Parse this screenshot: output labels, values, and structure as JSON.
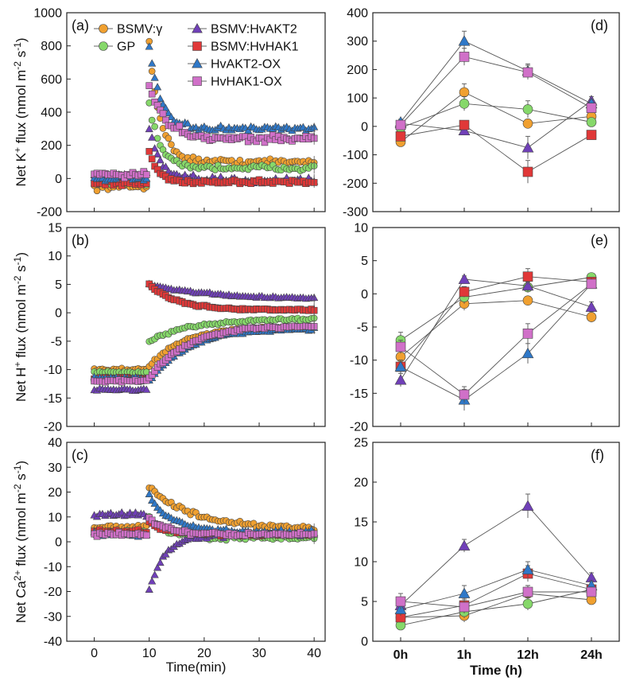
{
  "colors": {
    "BSMV:γ": "#f0a030",
    "GP": "#86d86a",
    "BSMV:HvAKT2": "#7040b8",
    "BSMV:HvHAK1": "#e03838",
    "HvAKT2-OX": "#2f78c8",
    "HvHAK1-OX": "#d070c8"
  },
  "markers": {
    "BSMV:γ": "circle",
    "GP": "circle",
    "BSMV:HvAKT2": "triangle",
    "BSMV:HvHAK1": "square",
    "HvAKT2-OX": "triangle",
    "HvHAK1-OX": "square"
  },
  "legend": {
    "placement": "top, inside panel (a)",
    "entries": [
      "BSMV:γ",
      "GP",
      "BSMV:HvAKT2",
      "BSMV:HvHAK1",
      "HvAKT2-OX",
      "HvHAK1-OX"
    ]
  },
  "chart_data": [
    {
      "panel": "(a)",
      "type": "scatter",
      "ylabel": "Net K+ flux (nmol m-2 s-1)",
      "ylim": [
        -200,
        1000
      ],
      "yticks": [
        -200,
        0,
        200,
        400,
        600,
        800,
        1000
      ],
      "xlim": [
        -5,
        42
      ],
      "xticks": [
        0,
        10,
        20,
        30,
        40
      ],
      "treatment_time": 10,
      "series": [
        {
          "name": "BSMV:γ",
          "base": -50,
          "peak": 820,
          "plateau": 100,
          "tau": 2.0,
          "noise": 15
        },
        {
          "name": "GP",
          "base": -20,
          "peak": 440,
          "plateau": 65,
          "tau": 2.0,
          "noise": 15
        },
        {
          "name": "BSMV:HvAKT2",
          "base": 15,
          "peak": 300,
          "plateau": -10,
          "tau": 2.0,
          "noise": 18
        },
        {
          "name": "BSMV:HvHAK1",
          "base": -30,
          "peak": 170,
          "plateau": -20,
          "tau": 1.5,
          "noise": 12
        },
        {
          "name": "HvAKT2-OX",
          "base": 0,
          "peak": 800,
          "plateau": 300,
          "tau": 2.0,
          "noise": 12
        },
        {
          "name": "HvHAK1-OX",
          "base": 25,
          "peak": 560,
          "plateau": 240,
          "tau": 3.0,
          "noise": 18
        }
      ]
    },
    {
      "panel": "(b)",
      "type": "scatter",
      "ylabel": "Net H+ flux (nmol m-2 s-1)",
      "ylim": [
        -20,
        15
      ],
      "yticks": [
        -20,
        -15,
        -10,
        -5,
        0,
        5,
        10,
        15
      ],
      "xlim": [
        -5,
        42
      ],
      "xticks": [
        0,
        10,
        20,
        30,
        40
      ],
      "treatment_time": 10,
      "series": [
        {
          "name": "BSMV:γ",
          "base": -10,
          "peak": -9.5,
          "plateau": -2.5,
          "tau": 6,
          "noise": 0.2
        },
        {
          "name": "GP",
          "base": -10.5,
          "peak": -5,
          "plateau": -1,
          "tau": 8,
          "noise": 0.2
        },
        {
          "name": "BSMV:HvAKT2",
          "base": -13.5,
          "peak": 5,
          "plateau": 2.3,
          "tau": 12,
          "noise": 0.15
        },
        {
          "name": "BSMV:HvHAK1",
          "base": -11.5,
          "peak": 5,
          "plateau": 0.5,
          "tau": 5,
          "noise": 0.15
        },
        {
          "name": "HvAKT2-OX",
          "base": -11.5,
          "peak": -12,
          "plateau": -2.7,
          "tau": 7,
          "noise": 0.2
        },
        {
          "name": "HvHAK1-OX",
          "base": -12,
          "peak": -11.5,
          "plateau": -2.2,
          "tau": 7,
          "noise": 0.2
        }
      ]
    },
    {
      "panel": "(c)",
      "type": "scatter",
      "ylabel": "Net Ca2+ flux (nmol m-2 s-1)",
      "xlabel": "Time(min)",
      "ylim": [
        -40,
        40
      ],
      "yticks": [
        -40,
        -30,
        -20,
        -10,
        0,
        10,
        20,
        30,
        40
      ],
      "xlim": [
        -5,
        42
      ],
      "xticks": [
        0,
        10,
        20,
        30,
        40
      ],
      "treatment_time": 10,
      "series": [
        {
          "name": "BSMV:γ",
          "base": 6,
          "peak": 22,
          "plateau": 5,
          "tau": 8,
          "noise": 0.8
        },
        {
          "name": "GP",
          "base": 4,
          "peak": 10,
          "plateau": 1.5,
          "tau": 3,
          "noise": 0.7
        },
        {
          "name": "BSMV:HvAKT2",
          "base": 11,
          "peak": -19,
          "plateau": 3,
          "tau": 3,
          "noise": 0.8
        },
        {
          "name": "BSMV:HvHAK1",
          "base": 4,
          "peak": 8,
          "plateau": 3,
          "tau": 3,
          "noise": 0.6
        },
        {
          "name": "HvAKT2-OX",
          "base": 3,
          "peak": 19,
          "plateau": 4,
          "tau": 4,
          "noise": 0.7
        },
        {
          "name": "HvHAK1-OX",
          "base": 3,
          "peak": 10,
          "plateau": 3,
          "tau": 3,
          "noise": 0.6
        }
      ]
    },
    {
      "panel": "(d)",
      "type": "line",
      "categories": [
        "0h",
        "1h",
        "12h",
        "24h"
      ],
      "ylim": [
        -300,
        400
      ],
      "yticks": [
        -300,
        -200,
        -100,
        0,
        100,
        200,
        300,
        400
      ],
      "series": [
        {
          "name": "BSMV:γ",
          "values": [
            -55,
            120,
            10,
            35
          ],
          "errors": [
            15,
            30,
            15,
            10
          ]
        },
        {
          "name": "GP",
          "values": [
            -5,
            80,
            60,
            15
          ],
          "errors": [
            10,
            25,
            30,
            10
          ]
        },
        {
          "name": "BSMV:HvAKT2",
          "values": [
            10,
            -15,
            -75,
            90
          ],
          "errors": [
            10,
            15,
            40,
            15
          ]
        },
        {
          "name": "BSMV:HvHAK1",
          "values": [
            -35,
            5,
            -160,
            -30
          ],
          "errors": [
            15,
            10,
            40,
            15
          ]
        },
        {
          "name": "HvAKT2-OX",
          "values": [
            15,
            300,
            195,
            80
          ],
          "errors": [
            10,
            35,
            25,
            15
          ]
        },
        {
          "name": "HvHAK1-OX",
          "values": [
            5,
            245,
            190,
            65
          ],
          "errors": [
            10,
            30,
            25,
            15
          ]
        }
      ]
    },
    {
      "panel": "(e)",
      "type": "line",
      "categories": [
        "0h",
        "1h",
        "12h",
        "24h"
      ],
      "ylim": [
        -20,
        10
      ],
      "yticks": [
        -20,
        -15,
        -10,
        -5,
        0,
        5,
        10
      ],
      "series": [
        {
          "name": "BSMV:γ",
          "values": [
            -9.5,
            -1.5,
            -1,
            -3.5
          ],
          "errors": [
            1.0,
            1.0,
            0.6,
            0.8
          ]
        },
        {
          "name": "GP",
          "values": [
            -7,
            -0.5,
            1,
            2.5
          ],
          "errors": [
            1.2,
            1.0,
            0.8,
            0.5
          ]
        },
        {
          "name": "BSMV:HvAKT2",
          "values": [
            -13,
            2.2,
            1.2,
            -2
          ],
          "errors": [
            1.0,
            0.5,
            1.0,
            0.8
          ]
        },
        {
          "name": "BSMV:HvHAK1",
          "values": [
            -11,
            0.3,
            2.6,
            1.8
          ],
          "errors": [
            1.0,
            0.8,
            1.2,
            0.6
          ]
        },
        {
          "name": "HvAKT2-OX",
          "values": [
            -11,
            -16,
            -9,
            1.5
          ],
          "errors": [
            1.0,
            1.6,
            1.5,
            0.6
          ]
        },
        {
          "name": "HvHAK1-OX",
          "values": [
            -8,
            -15.2,
            -6,
            1.5
          ],
          "errors": [
            1.0,
            1.2,
            1.5,
            0.6
          ]
        }
      ]
    },
    {
      "panel": "(f)",
      "type": "line",
      "xlabel": "Time (h)",
      "categories": [
        "0h",
        "1h",
        "12h",
        "24h"
      ],
      "ylim": [
        0,
        25
      ],
      "yticks": [
        0,
        5,
        10,
        15,
        20,
        25
      ],
      "series": [
        {
          "name": "BSMV:γ",
          "values": [
            3,
            3.2,
            6,
            5.2
          ],
          "errors": [
            0.6,
            0.8,
            1.0,
            0.6
          ]
        },
        {
          "name": "GP",
          "values": [
            2,
            3.7,
            4.7,
            6.5
          ],
          "errors": [
            0.5,
            0.8,
            0.8,
            0.6
          ]
        },
        {
          "name": "BSMV:HvAKT2",
          "values": [
            4.5,
            12,
            17,
            8
          ],
          "errors": [
            0.8,
            0.8,
            1.5,
            0.6
          ]
        },
        {
          "name": "BSMV:HvHAK1",
          "values": [
            3,
            4.5,
            8.5,
            6.5
          ],
          "errors": [
            0.6,
            0.8,
            1.0,
            0.6
          ]
        },
        {
          "name": "HvAKT2-OX",
          "values": [
            4,
            6,
            9,
            7
          ],
          "errors": [
            0.8,
            1.0,
            1.0,
            0.6
          ]
        },
        {
          "name": "HvHAK1-OX",
          "values": [
            5,
            4.3,
            6.2,
            6.2
          ],
          "errors": [
            1.0,
            0.8,
            0.8,
            0.6
          ]
        }
      ]
    }
  ]
}
